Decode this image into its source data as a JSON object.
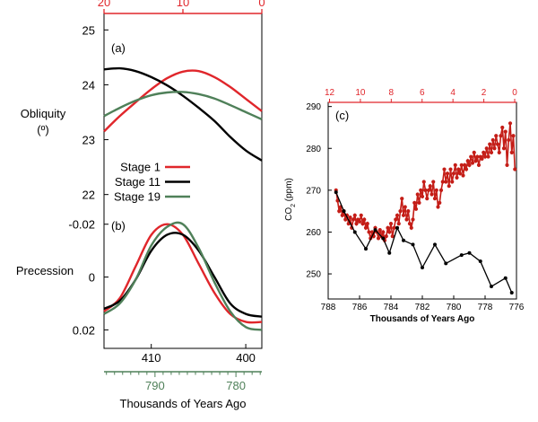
{
  "colors": {
    "stage1": "#e0262b",
    "stage11": "#000000",
    "stage19": "#4f8059",
    "red_axis": "#e0262b",
    "green_axis": "#4f8059",
    "co2_red": "#c41d17",
    "black": "#000000"
  },
  "chart_data": [
    {
      "type": "line",
      "panel": "(a)",
      "ylabel": "Obliquity",
      "ylabel_unit": "(º)",
      "xlim_top": [
        20,
        0
      ],
      "ylim": [
        21.7,
        25.3
      ],
      "yticks": [
        22,
        23,
        24,
        25
      ],
      "ytick_labels": [
        "22",
        "23",
        "24",
        "25"
      ],
      "top_axis_ticks": [
        20,
        10,
        0
      ],
      "top_axis_labels": [
        "20",
        "10",
        "0"
      ],
      "x": [
        20,
        18,
        16,
        14,
        12,
        10,
        8,
        6,
        4,
        2,
        0
      ],
      "series": [
        {
          "name": "Stage 1",
          "color_key": "stage1",
          "values": [
            23.15,
            23.43,
            23.68,
            23.92,
            24.12,
            24.24,
            24.25,
            24.14,
            23.96,
            23.74,
            23.52
          ]
        },
        {
          "name": "Stage 11",
          "color_key": "stage11",
          "values": [
            24.28,
            24.3,
            24.25,
            24.14,
            23.99,
            23.8,
            23.58,
            23.34,
            23.05,
            22.8,
            22.62
          ]
        },
        {
          "name": "Stage 19",
          "color_key": "stage19",
          "values": [
            23.43,
            23.58,
            23.71,
            23.81,
            23.86,
            23.87,
            23.83,
            23.75,
            23.63,
            23.5,
            23.37
          ]
        }
      ],
      "legend": [
        "Stage 1",
        "Stage 11",
        "Stage 19"
      ]
    },
    {
      "type": "line",
      "panel": "(b)",
      "ylabel": "Precession",
      "ylim": [
        0.027,
        -0.025
      ],
      "yticks": [
        -0.02,
        0,
        0.02
      ],
      "ytick_labels": [
        "-0.02",
        "0",
        "0.02"
      ],
      "bottom_axis_ticks": [
        410,
        400
      ],
      "bottom_axis_labels": [
        "410",
        "400"
      ],
      "green_axis_ticks": [
        790,
        780
      ],
      "green_axis_labels": [
        "790",
        "780"
      ],
      "xlabel": "Thousands of Years Ago",
      "x": [
        20,
        18,
        16,
        14,
        12,
        10,
        8,
        6,
        4,
        2,
        0
      ],
      "series": [
        {
          "name": "Stage 1",
          "color_key": "stage1",
          "values": [
            0.013,
            0.008,
            -0.004,
            -0.016,
            -0.02,
            -0.016,
            -0.005,
            0.006,
            0.014,
            0.017,
            0.017
          ]
        },
        {
          "name": "Stage 11",
          "color_key": "stage11",
          "values": [
            0.012,
            0.009,
            0.001,
            -0.01,
            -0.016,
            -0.016,
            -0.01,
            0.0,
            0.01,
            0.014,
            0.015
          ]
        },
        {
          "name": "Stage 19",
          "color_key": "stage19",
          "values": [
            0.014,
            0.01,
            0.001,
            -0.012,
            -0.019,
            -0.02,
            -0.011,
            0.002,
            0.013,
            0.019,
            0.02
          ]
        }
      ]
    },
    {
      "type": "line",
      "panel": "(c)",
      "ylabel": "CO",
      "ylabel_sub": "2",
      "ylabel_unit": " (ppm)",
      "xlabel": "Thousands of Years Ago",
      "xlim": [
        788,
        776
      ],
      "ylim": [
        244,
        291
      ],
      "xticks": [
        788,
        786,
        784,
        782,
        780,
        778,
        776
      ],
      "xtick_labels": [
        "788",
        "786",
        "784",
        "782",
        "780",
        "778",
        "776"
      ],
      "yticks": [
        250,
        260,
        270,
        280,
        290
      ],
      "ytick_labels": [
        "250",
        "260",
        "270",
        "280",
        "290"
      ],
      "top_axis_ticks": [
        12,
        10,
        8,
        6,
        4,
        2,
        0
      ],
      "top_axis_labels": [
        "12",
        "10",
        "8",
        "6",
        "4",
        "2",
        "0"
      ],
      "series": [
        {
          "name": "",
          "color_key": "co2_red",
          "x": [
            787.5,
            787.4,
            787.3,
            787.2,
            787.1,
            787.0,
            786.9,
            786.8,
            786.7,
            786.6,
            786.5,
            786.4,
            786.3,
            786.2,
            786.1,
            786.0,
            785.9,
            785.8,
            785.7,
            785.6,
            785.5,
            785.4,
            785.3,
            785.2,
            785.1,
            785.0,
            784.9,
            784.8,
            784.7,
            784.6,
            784.5,
            784.4,
            784.3,
            784.2,
            784.1,
            784.0,
            783.9,
            783.8,
            783.7,
            783.6,
            783.5,
            783.4,
            783.3,
            783.2,
            783.1,
            783.0,
            782.9,
            782.8,
            782.7,
            782.6,
            782.5,
            782.4,
            782.3,
            782.2,
            782.1,
            782.0,
            781.9,
            781.8,
            781.7,
            781.6,
            781.5,
            781.4,
            781.3,
            781.2,
            781.1,
            781.0,
            780.9,
            780.8,
            780.7,
            780.6,
            780.5,
            780.4,
            780.3,
            780.2,
            780.1,
            780.0,
            779.9,
            779.8,
            779.7,
            779.6,
            779.5,
            779.4,
            779.3,
            779.2,
            779.1,
            779.0,
            778.9,
            778.8,
            778.7,
            778.6,
            778.5,
            778.4,
            778.3,
            778.2,
            778.1,
            778.0,
            777.9,
            777.8,
            777.7,
            777.6,
            777.5,
            777.4,
            777.3,
            777.2,
            777.1,
            777.0,
            776.9,
            776.8,
            776.7,
            776.6,
            776.5,
            776.4,
            776.3,
            776.2,
            776.1
          ],
          "values": [
            270.0,
            267.5,
            265.0,
            266.0,
            264.0,
            265.0,
            263.0,
            264.0,
            262.0,
            263.5,
            261.0,
            263.0,
            264.0,
            262.0,
            263.0,
            262.5,
            264.0,
            262.0,
            263.0,
            261.0,
            262.0,
            260.0,
            258.5,
            260.0,
            259.0,
            261.0,
            260.0,
            258.5,
            260.5,
            259.0,
            260.0,
            258.0,
            259.0,
            261.0,
            260.0,
            262.0,
            259.0,
            261.0,
            263.0,
            264.0,
            262.0,
            265.0,
            268.0,
            264.0,
            266.0,
            263.0,
            265.0,
            262.0,
            261.0,
            263.0,
            267.0,
            265.5,
            269.0,
            267.0,
            270.0,
            268.5,
            272.0,
            270.0,
            268.0,
            270.0,
            271.0,
            269.0,
            272.0,
            268.0,
            270.0,
            266.0,
            267.0,
            270.0,
            272.0,
            275.0,
            272.0,
            274.0,
            271.0,
            275.0,
            272.0,
            274.0,
            276.0,
            273.0,
            275.0,
            274.0,
            276.0,
            273.5,
            276.0,
            275.0,
            277.0,
            276.0,
            278.0,
            276.5,
            279.0,
            277.0,
            278.0,
            276.0,
            278.0,
            277.5,
            279.0,
            278.0,
            280.0,
            278.0,
            281.0,
            279.0,
            282.0,
            280.0,
            283.0,
            281.0,
            279.0,
            283.0,
            285.0,
            280.0,
            284.0,
            276.0,
            282.0,
            286.0,
            279.0,
            283.0,
            275.0
          ]
        },
        {
          "name": "",
          "color_key": "black",
          "x": [
            787.5,
            787.0,
            786.3,
            785.6,
            785.0,
            784.5,
            784.1,
            783.6,
            783.2,
            782.6,
            782.0,
            781.2,
            780.5,
            779.5,
            779.0,
            778.3,
            777.6,
            776.7,
            776.3
          ],
          "values": [
            269.5,
            265.0,
            260.0,
            256.0,
            260.5,
            258.5,
            255.0,
            261.0,
            258.0,
            257.0,
            251.5,
            257.0,
            252.5,
            254.5,
            255.0,
            253.0,
            247.0,
            249.0,
            245.5
          ]
        }
      ]
    }
  ]
}
